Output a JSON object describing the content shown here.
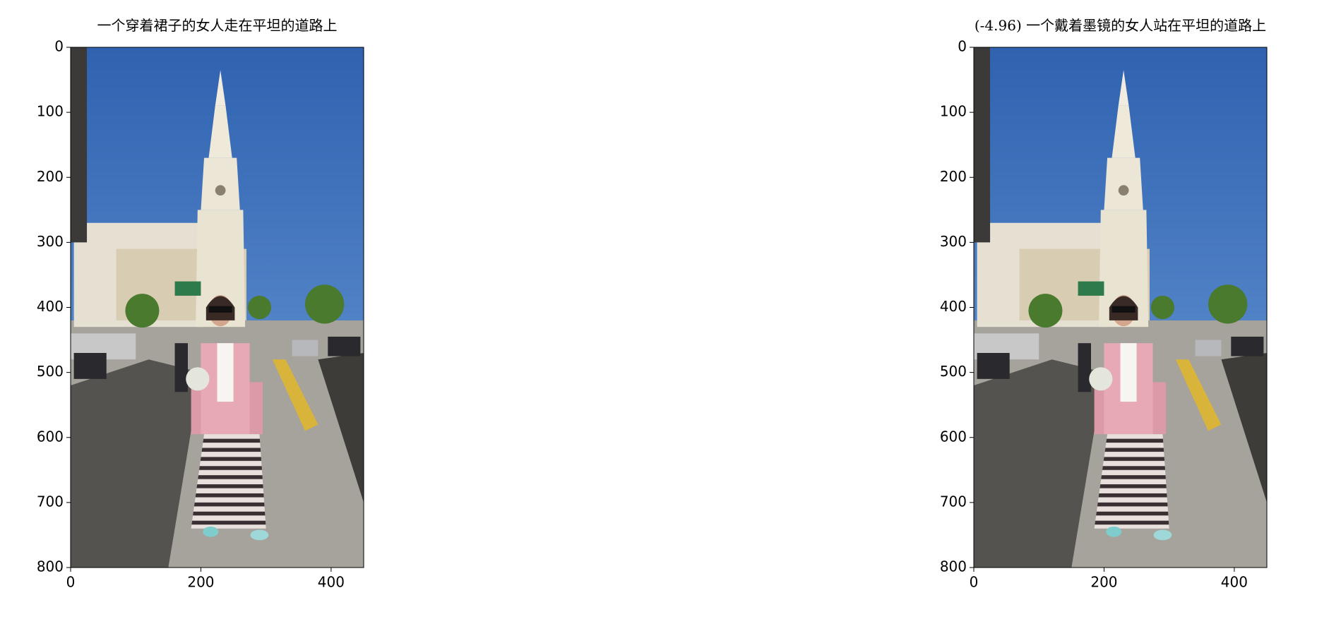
{
  "chart_data": [
    {
      "type": "image",
      "title": "一个穿着裙子的女人走在平坦的道路上",
      "xlim": [
        0,
        450
      ],
      "ylim": [
        800,
        0
      ],
      "xticks": [
        0,
        200,
        400
      ],
      "yticks": [
        0,
        100,
        200,
        300,
        400,
        500,
        600,
        700,
        800
      ]
    },
    {
      "type": "image",
      "title": "(-4.96) 一个戴着墨镜的女人站在平坦的道路上",
      "xlim": [
        0,
        450
      ],
      "ylim": [
        800,
        0
      ],
      "xticks": [
        0,
        200,
        400
      ],
      "yticks": [
        0,
        100,
        200,
        300,
        400,
        500,
        600,
        700,
        800
      ]
    }
  ]
}
